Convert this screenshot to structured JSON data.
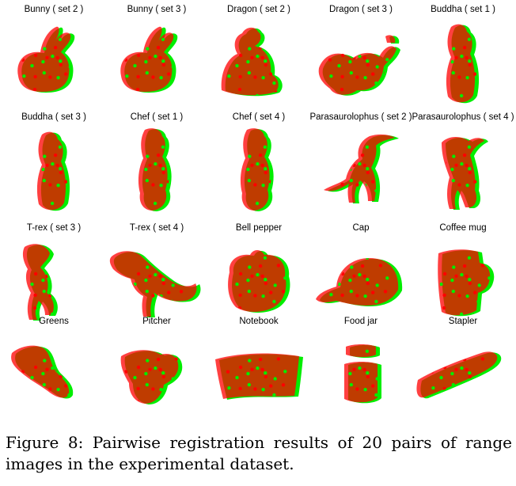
{
  "colors": {
    "source": "#ff0000",
    "target": "#00ee00"
  },
  "figure": {
    "panels": [
      {
        "label": "Bunny  ( set 2 )",
        "shape": "bunny"
      },
      {
        "label": "Bunny  ( set 3 )",
        "shape": "bunny"
      },
      {
        "label": "Dragon  ( set 2 )",
        "shape": "dragon"
      },
      {
        "label": "Dragon  ( set 3 )",
        "shape": "dragon-side"
      },
      {
        "label": "Buddha  ( set 1 )",
        "shape": "buddha"
      },
      {
        "label": "Buddha  ( set 3 )",
        "shape": "buddha"
      },
      {
        "label": "Chef  ( set 1 )",
        "shape": "chef"
      },
      {
        "label": "Chef  ( set 4 )",
        "shape": "chef"
      },
      {
        "label": "Parasaurolophus  ( set 2 )",
        "shape": "dino"
      },
      {
        "label": "Parasaurolophus  ( set 4 )",
        "shape": "dino-front"
      },
      {
        "label": "T-rex  ( set 3 )",
        "shape": "trex-front"
      },
      {
        "label": "T-rex  ( set 4 )",
        "shape": "trex"
      },
      {
        "label": "Bell pepper",
        "shape": "pepper"
      },
      {
        "label": "Cap",
        "shape": "cap"
      },
      {
        "label": "Coffee mug",
        "shape": "mug"
      },
      {
        "label": "Greens",
        "shape": "greens"
      },
      {
        "label": "Pitcher",
        "shape": "pitcher"
      },
      {
        "label": "Notebook",
        "shape": "notebook"
      },
      {
        "label": "Food jar",
        "shape": "jar"
      },
      {
        "label": "Stapler",
        "shape": "stapler"
      }
    ],
    "caption": "Figure 8:  Pairwise registration results of 20 pairs of range images in the experimental dataset."
  }
}
